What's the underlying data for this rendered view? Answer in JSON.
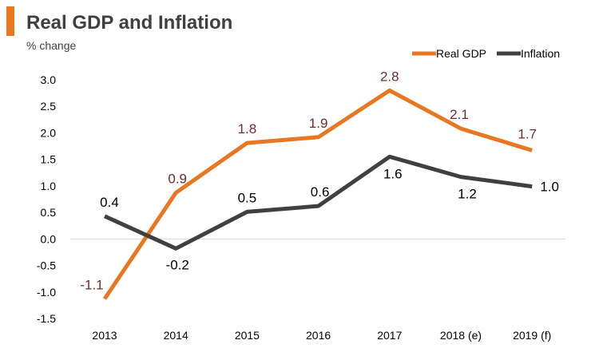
{
  "chart_data": {
    "type": "line",
    "title": "Real GDP and Inflation",
    "subtitle": "% change",
    "categories": [
      "2013",
      "2014",
      "2015",
      "2016",
      "2017",
      "2018 (e)",
      "2019 (f)"
    ],
    "ylim": [
      -1.5,
      3.0
    ],
    "yticks": [
      3.0,
      2.5,
      2.0,
      1.5,
      1.0,
      0.5,
      0.0,
      -0.5,
      -1.0,
      -1.5
    ],
    "ytick_labels": [
      "3.0",
      "2.5",
      "2.0",
      "1.5",
      "1.0",
      "0.5",
      "0.0",
      "-0.5",
      "-1.0",
      "-1.5"
    ],
    "legend_position": "top-right",
    "series": [
      {
        "name": "Real GDP",
        "color": "#E87722",
        "label_color": "#6B2C2C",
        "values": [
          -1.13,
          0.87,
          1.81,
          1.92,
          2.8,
          2.08,
          1.67
        ],
        "labels": [
          "-1.1",
          "0.9",
          "1.8",
          "1.9",
          "2.8",
          "2.1",
          "1.7"
        ]
      },
      {
        "name": "Inflation",
        "color": "#404040",
        "label_color": "#000000",
        "values": [
          0.43,
          -0.18,
          0.51,
          0.62,
          1.55,
          1.17,
          0.99
        ],
        "labels": [
          "0.4",
          "-0.2",
          "0.5",
          "0.6",
          "1.6",
          "1.2",
          "1.0"
        ]
      }
    ]
  },
  "colors": {
    "accent_bar": "#E87722",
    "title": "#404040",
    "axis": "#D9D9D9"
  }
}
